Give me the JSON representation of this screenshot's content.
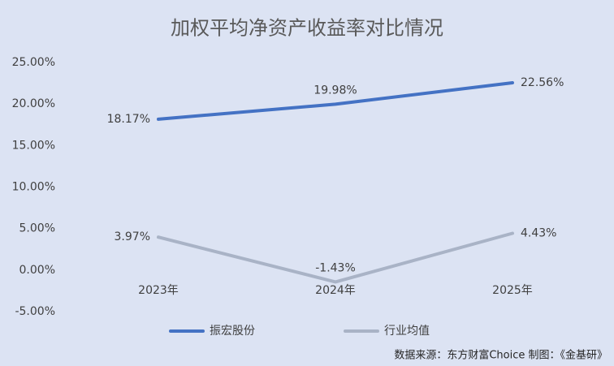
{
  "chart_data": {
    "type": "line",
    "title": "加权平均净资产收益率对比情况",
    "categories": [
      "2023年",
      "2024年",
      "2025年"
    ],
    "series": [
      {
        "name": "振宏股份",
        "color": "#4472c4",
        "values": [
          18.17,
          19.98,
          22.56
        ],
        "value_labels": [
          "18.17%",
          "19.98%",
          "22.56%"
        ]
      },
      {
        "name": "行业均值",
        "color": "#a9b3c6",
        "values": [
          3.97,
          -1.43,
          4.43
        ],
        "value_labels": [
          "3.97%",
          "-1.43%",
          "4.43%"
        ]
      }
    ],
    "ylim": [
      -5,
      25
    ],
    "yticks": [
      {
        "value": -5,
        "label": "-5.00%"
      },
      {
        "value": 0,
        "label": "0.00%"
      },
      {
        "value": 5,
        "label": "5.00%"
      },
      {
        "value": 10,
        "label": "10.00%"
      },
      {
        "value": 15,
        "label": "15.00%"
      },
      {
        "value": 20,
        "label": "20.00%"
      },
      {
        "value": 25,
        "label": "25.00%"
      }
    ],
    "grid": false,
    "legend": "bottom",
    "source": "数据来源：东方财富Choice   制图：《金基研》"
  }
}
